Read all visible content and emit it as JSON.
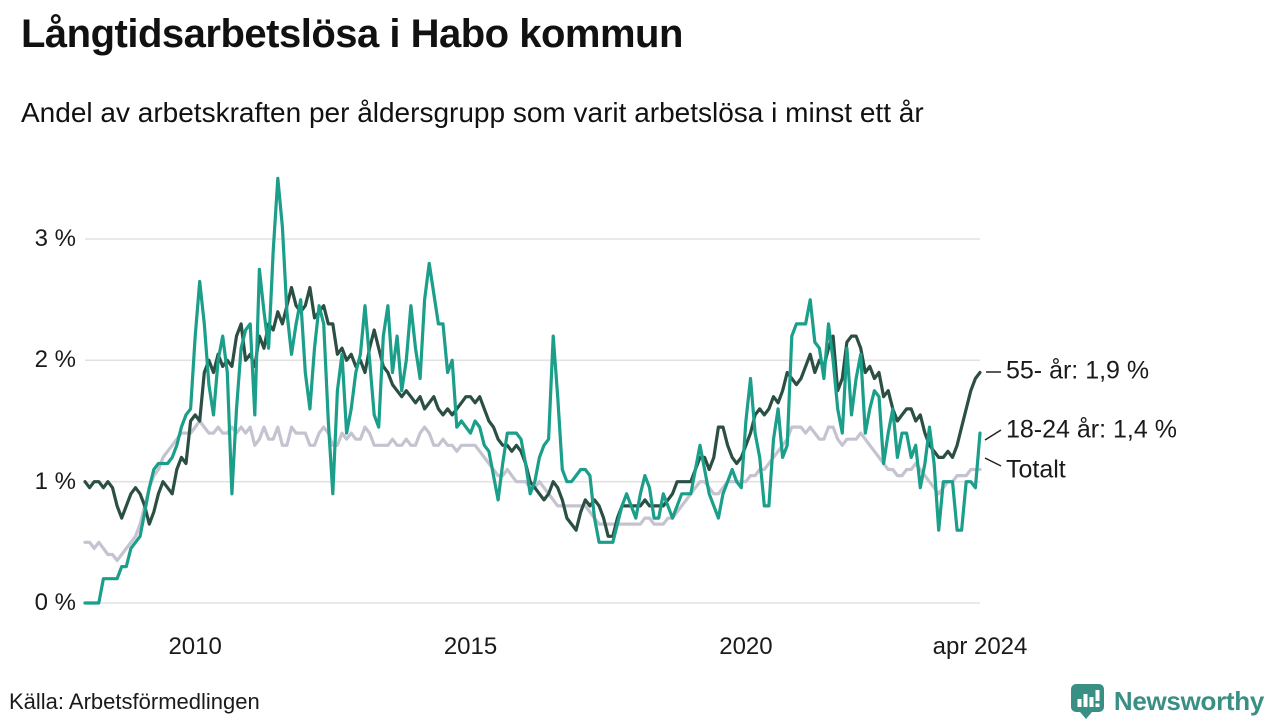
{
  "header": {
    "title": "Långtidsarbetslösa i Habo kommun",
    "subtitle": "Andel av arbetskraften per åldersgrupp som varit arbetslösa i minst ett år"
  },
  "footer": {
    "source": "Källa: Arbetsförmedlingen",
    "brand_name": "Newsworthy"
  },
  "colors": {
    "brand_teal": "#3a8f85",
    "grid": "#e2e2e2",
    "axis_text": "#1a1a1a",
    "leader": "#222222"
  },
  "chart_data": {
    "type": "line",
    "title": "Långtidsarbetslösa i Habo kommun",
    "subtitle": "Andel av arbetskraften per åldersgrupp som varit arbetslösa i minst ett år",
    "x_unit": "monthly, 2008-01 through 2024-04",
    "ylim": [
      0,
      3.6
    ],
    "grid": true,
    "y_ticks": [
      {
        "value": 0,
        "label": "0 %"
      },
      {
        "value": 1,
        "label": "1 %"
      },
      {
        "value": 2,
        "label": "2 %"
      },
      {
        "value": 3,
        "label": "3 %"
      }
    ],
    "x_ticks": [
      {
        "label": "2010",
        "month_index": 24
      },
      {
        "label": "2015",
        "month_index": 84
      },
      {
        "label": "2020",
        "month_index": 144
      },
      {
        "label": "apr 2024",
        "month_index": 195
      }
    ],
    "series": [
      {
        "name": "55- år",
        "end_label": "55- år: 1,9 %",
        "end_value": "1,9 %",
        "color": "#2c4f44",
        "values": [
          1.0,
          0.95,
          1.0,
          1.0,
          0.95,
          1.0,
          0.95,
          0.8,
          0.7,
          0.8,
          0.9,
          0.95,
          0.9,
          0.8,
          0.65,
          0.75,
          0.9,
          1.0,
          0.95,
          0.9,
          1.1,
          1.2,
          1.15,
          1.5,
          1.55,
          1.5,
          1.9,
          2.0,
          1.9,
          2.05,
          1.95,
          2.0,
          1.95,
          2.2,
          2.3,
          2.0,
          2.05,
          1.95,
          2.2,
          2.1,
          2.3,
          2.25,
          2.4,
          2.3,
          2.45,
          2.6,
          2.45,
          2.4,
          2.45,
          2.6,
          2.35,
          2.4,
          2.45,
          2.3,
          2.3,
          2.05,
          2.1,
          2.0,
          2.05,
          1.95,
          2.0,
          1.9,
          2.1,
          2.25,
          2.1,
          1.95,
          1.9,
          1.8,
          1.75,
          1.7,
          1.75,
          1.7,
          1.65,
          1.7,
          1.6,
          1.65,
          1.7,
          1.6,
          1.55,
          1.6,
          1.55,
          1.6,
          1.65,
          1.7,
          1.7,
          1.65,
          1.7,
          1.6,
          1.5,
          1.45,
          1.35,
          1.3,
          1.3,
          1.25,
          1.3,
          1.25,
          1.15,
          1.0,
          0.95,
          0.9,
          0.85,
          0.9,
          1.0,
          0.95,
          0.85,
          0.7,
          0.65,
          0.6,
          0.75,
          0.85,
          0.8,
          0.85,
          0.8,
          0.7,
          0.55,
          0.55,
          0.7,
          0.8,
          0.8,
          0.8,
          0.8,
          0.8,
          0.85,
          0.8,
          0.8,
          0.8,
          0.8,
          0.85,
          0.9,
          1.0,
          1.0,
          1.0,
          1.0,
          1.1,
          1.2,
          1.2,
          1.1,
          1.2,
          1.45,
          1.45,
          1.3,
          1.2,
          1.15,
          1.2,
          1.3,
          1.4,
          1.55,
          1.6,
          1.55,
          1.6,
          1.7,
          1.65,
          1.75,
          1.9,
          1.85,
          1.8,
          1.85,
          1.95,
          2.05,
          1.9,
          2.0,
          1.95,
          2.1,
          2.2,
          1.75,
          1.85,
          2.15,
          2.2,
          2.2,
          2.1,
          1.9,
          1.95,
          1.85,
          1.9,
          1.7,
          1.75,
          1.6,
          1.5,
          1.55,
          1.6,
          1.6,
          1.5,
          1.55,
          1.4,
          1.3,
          1.25,
          1.2,
          1.2,
          1.25,
          1.2,
          1.3,
          1.45,
          1.6,
          1.75,
          1.85,
          1.9
        ]
      },
      {
        "name": "18-24 år",
        "end_label": "18-24 år: 1,4 %",
        "end_value": "1,4 %",
        "color": "#1b9e8a",
        "values": [
          0.0,
          0.0,
          0.0,
          0.0,
          0.2,
          0.2,
          0.2,
          0.2,
          0.3,
          0.3,
          0.45,
          0.5,
          0.55,
          0.75,
          0.95,
          1.1,
          1.15,
          1.15,
          1.15,
          1.2,
          1.3,
          1.45,
          1.55,
          1.6,
          2.2,
          2.65,
          2.3,
          1.8,
          1.55,
          2.0,
          2.2,
          1.9,
          0.9,
          1.6,
          2.1,
          2.25,
          2.3,
          1.55,
          2.75,
          2.4,
          2.1,
          2.9,
          3.5,
          3.1,
          2.4,
          2.05,
          2.3,
          2.5,
          1.9,
          1.6,
          2.1,
          2.45,
          2.3,
          1.5,
          0.9,
          1.75,
          2.05,
          1.4,
          1.6,
          1.9,
          2.05,
          2.45,
          2.0,
          1.55,
          1.45,
          2.2,
          2.45,
          1.9,
          2.2,
          1.75,
          2.0,
          2.45,
          2.1,
          1.85,
          2.5,
          2.8,
          2.55,
          2.3,
          2.3,
          1.9,
          2.0,
          1.45,
          1.5,
          1.45,
          1.4,
          1.5,
          1.45,
          1.3,
          1.25,
          1.05,
          0.85,
          1.15,
          1.4,
          1.4,
          1.4,
          1.35,
          1.15,
          0.9,
          1.0,
          1.2,
          1.3,
          1.35,
          2.2,
          1.7,
          1.1,
          1.0,
          1.0,
          1.05,
          1.1,
          1.1,
          1.05,
          0.7,
          0.5,
          0.5,
          0.5,
          0.5,
          0.65,
          0.8,
          0.9,
          0.8,
          0.7,
          0.9,
          1.05,
          0.95,
          0.7,
          0.7,
          0.9,
          0.8,
          0.7,
          0.8,
          0.9,
          0.9,
          0.9,
          1.1,
          1.3,
          1.1,
          0.9,
          0.8,
          0.7,
          0.9,
          1.0,
          1.1,
          1.0,
          0.95,
          1.5,
          1.85,
          1.4,
          1.2,
          0.8,
          0.8,
          1.35,
          1.6,
          1.2,
          1.3,
          2.2,
          2.3,
          2.3,
          2.3,
          2.5,
          2.15,
          2.1,
          1.85,
          2.3,
          2.0,
          1.6,
          1.4,
          2.1,
          1.55,
          1.85,
          2.05,
          1.4,
          1.6,
          1.75,
          1.7,
          1.15,
          1.4,
          1.6,
          1.2,
          1.4,
          1.4,
          1.2,
          1.3,
          0.95,
          1.15,
          1.45,
          1.15,
          0.6,
          1.0,
          1.0,
          1.0,
          0.6,
          0.6,
          1.0,
          1.0,
          0.95,
          1.4
        ]
      },
      {
        "name": "Totalt",
        "end_label": "Totalt",
        "end_value": "",
        "color": "#c5c3d0",
        "values": [
          0.5,
          0.5,
          0.45,
          0.5,
          0.45,
          0.4,
          0.4,
          0.35,
          0.4,
          0.45,
          0.5,
          0.55,
          0.65,
          0.8,
          0.95,
          1.05,
          1.1,
          1.2,
          1.25,
          1.3,
          1.35,
          1.4,
          1.4,
          1.4,
          1.45,
          1.5,
          1.45,
          1.4,
          1.4,
          1.45,
          1.4,
          1.4,
          1.45,
          1.4,
          1.45,
          1.4,
          1.45,
          1.3,
          1.35,
          1.45,
          1.35,
          1.35,
          1.45,
          1.3,
          1.3,
          1.45,
          1.4,
          1.4,
          1.4,
          1.3,
          1.3,
          1.4,
          1.45,
          1.4,
          1.3,
          1.3,
          1.4,
          1.35,
          1.4,
          1.35,
          1.35,
          1.45,
          1.4,
          1.3,
          1.3,
          1.3,
          1.3,
          1.35,
          1.3,
          1.3,
          1.35,
          1.3,
          1.3,
          1.4,
          1.45,
          1.4,
          1.3,
          1.3,
          1.35,
          1.3,
          1.3,
          1.25,
          1.3,
          1.3,
          1.3,
          1.3,
          1.25,
          1.2,
          1.15,
          1.1,
          1.05,
          1.05,
          1.1,
          1.05,
          1.0,
          1.0,
          1.0,
          0.95,
          0.95,
          1.0,
          0.95,
          0.9,
          0.85,
          0.8,
          0.8,
          0.8,
          0.8,
          0.8,
          0.8,
          0.8,
          0.75,
          0.7,
          0.65,
          0.65,
          0.65,
          0.65,
          0.65,
          0.65,
          0.65,
          0.65,
          0.65,
          0.65,
          0.7,
          0.7,
          0.65,
          0.65,
          0.65,
          0.7,
          0.7,
          0.75,
          0.8,
          0.85,
          0.9,
          0.95,
          1.0,
          1.0,
          0.95,
          0.9,
          0.9,
          0.95,
          1.0,
          1.0,
          1.0,
          1.0,
          1.0,
          1.05,
          1.05,
          1.1,
          1.1,
          1.15,
          1.2,
          1.25,
          1.3,
          1.35,
          1.45,
          1.45,
          1.45,
          1.4,
          1.45,
          1.4,
          1.35,
          1.35,
          1.45,
          1.45,
          1.35,
          1.3,
          1.35,
          1.35,
          1.35,
          1.4,
          1.35,
          1.3,
          1.25,
          1.2,
          1.15,
          1.1,
          1.1,
          1.05,
          1.05,
          1.1,
          1.1,
          1.15,
          1.1,
          1.05,
          1.0,
          0.95,
          0.9,
          0.95,
          1.0,
          1.0,
          1.05,
          1.05,
          1.05,
          1.1,
          1.1,
          1.1
        ]
      }
    ],
    "legend_position": "right-end-labels"
  }
}
